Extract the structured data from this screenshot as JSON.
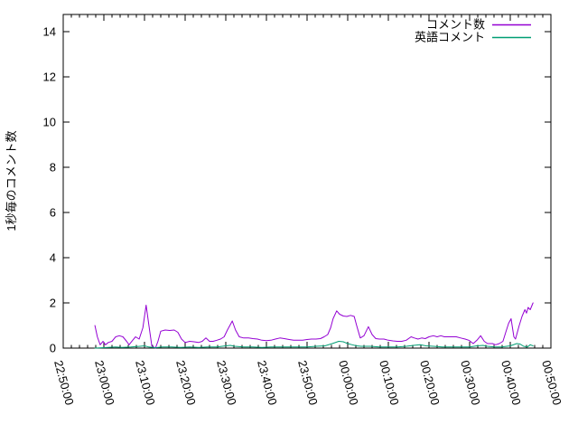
{
  "figure": {
    "background": "#ffffff",
    "axis_color": "#000000",
    "text_color": "#000000"
  },
  "chart_data": {
    "type": "line",
    "title": "",
    "xlabel": "",
    "ylabel": "1秒毎のコメント数",
    "x_axis": {
      "unit": "time HH:MM:SS",
      "tick_labels": [
        "22:50:00",
        "23:00:00",
        "23:10:00",
        "23:20:00",
        "23:30:00",
        "23:40:00",
        "23:50:00",
        "00:00:00",
        "00:10:00",
        "00:20:00",
        "00:30:00",
        "00:40:00",
        "00:50:00"
      ],
      "tick_minutes": [
        0,
        10,
        20,
        30,
        40,
        50,
        60,
        70,
        80,
        90,
        100,
        110,
        120
      ],
      "minor_tick_every_minutes": 2,
      "range_minutes": [
        0,
        120
      ],
      "label_rotation_deg": 75
    },
    "y_axis": {
      "tick_labels": [
        "0",
        "2",
        "4",
        "6",
        "8",
        "10",
        "12",
        "14"
      ],
      "tick_values": [
        0,
        2,
        4,
        6,
        8,
        10,
        12,
        14
      ],
      "range": [
        0,
        14.8
      ],
      "grid": false
    },
    "legend": {
      "position": "top-right-inside",
      "entries": [
        {
          "label": "コメント数",
          "color": "#9400D3"
        },
        {
          "label": "英語コメント",
          "color": "#009E73"
        }
      ]
    },
    "series": [
      {
        "name": "コメント数",
        "color": "#9400D3",
        "x_unit": "minutes_after_22:50:00",
        "points": [
          [
            7.8,
            1.0
          ],
          [
            8.4,
            0.5
          ],
          [
            9.1,
            0.15
          ],
          [
            9.8,
            0.3
          ],
          [
            10.4,
            0.15
          ],
          [
            11.1,
            0.25
          ],
          [
            12.0,
            0.3
          ],
          [
            12.9,
            0.5
          ],
          [
            13.8,
            0.55
          ],
          [
            14.7,
            0.5
          ],
          [
            15.6,
            0.3
          ],
          [
            16.2,
            0.15
          ],
          [
            17.1,
            0.35
          ],
          [
            17.8,
            0.5
          ],
          [
            18.7,
            0.4
          ],
          [
            19.6,
            0.9
          ],
          [
            20.4,
            1.9
          ],
          [
            21.1,
            1.0
          ],
          [
            21.8,
            0.1
          ],
          [
            22.7,
            0.0
          ],
          [
            23.3,
            0.3
          ],
          [
            24.0,
            0.75
          ],
          [
            25.1,
            0.8
          ],
          [
            26.2,
            0.78
          ],
          [
            27.3,
            0.8
          ],
          [
            28.2,
            0.7
          ],
          [
            29.1,
            0.4
          ],
          [
            30.0,
            0.25
          ],
          [
            31.1,
            0.3
          ],
          [
            32.2,
            0.28
          ],
          [
            33.3,
            0.25
          ],
          [
            34.2,
            0.3
          ],
          [
            35.1,
            0.45
          ],
          [
            36.0,
            0.3
          ],
          [
            36.9,
            0.3
          ],
          [
            37.8,
            0.35
          ],
          [
            38.7,
            0.4
          ],
          [
            39.6,
            0.5
          ],
          [
            40.4,
            0.8
          ],
          [
            41.6,
            1.2
          ],
          [
            42.4,
            0.8
          ],
          [
            43.3,
            0.5
          ],
          [
            44.4,
            0.45
          ],
          [
            45.6,
            0.45
          ],
          [
            46.7,
            0.42
          ],
          [
            47.8,
            0.4
          ],
          [
            48.9,
            0.35
          ],
          [
            50.0,
            0.33
          ],
          [
            51.1,
            0.35
          ],
          [
            52.2,
            0.4
          ],
          [
            53.3,
            0.45
          ],
          [
            54.4,
            0.42
          ],
          [
            55.6,
            0.38
          ],
          [
            56.7,
            0.35
          ],
          [
            57.8,
            0.35
          ],
          [
            58.9,
            0.35
          ],
          [
            60.0,
            0.38
          ],
          [
            61.1,
            0.4
          ],
          [
            62.2,
            0.4
          ],
          [
            63.3,
            0.42
          ],
          [
            64.2,
            0.5
          ],
          [
            65.1,
            0.6
          ],
          [
            65.8,
            0.9
          ],
          [
            66.4,
            1.3
          ],
          [
            67.3,
            1.65
          ],
          [
            68.0,
            1.5
          ],
          [
            68.9,
            1.42
          ],
          [
            69.8,
            1.4
          ],
          [
            70.7,
            1.45
          ],
          [
            71.6,
            1.4
          ],
          [
            72.2,
            1.0
          ],
          [
            73.1,
            0.45
          ],
          [
            74.0,
            0.55
          ],
          [
            75.1,
            0.95
          ],
          [
            76.0,
            0.6
          ],
          [
            76.9,
            0.42
          ],
          [
            77.8,
            0.4
          ],
          [
            78.9,
            0.4
          ],
          [
            80.0,
            0.35
          ],
          [
            81.1,
            0.32
          ],
          [
            82.2,
            0.3
          ],
          [
            83.3,
            0.3
          ],
          [
            84.4,
            0.35
          ],
          [
            85.6,
            0.5
          ],
          [
            86.4,
            0.45
          ],
          [
            87.3,
            0.4
          ],
          [
            88.2,
            0.45
          ],
          [
            89.1,
            0.42
          ],
          [
            90.0,
            0.5
          ],
          [
            91.1,
            0.55
          ],
          [
            92.0,
            0.5
          ],
          [
            92.9,
            0.55
          ],
          [
            93.8,
            0.5
          ],
          [
            94.7,
            0.5
          ],
          [
            95.6,
            0.5
          ],
          [
            96.7,
            0.5
          ],
          [
            97.8,
            0.45
          ],
          [
            98.9,
            0.4
          ],
          [
            99.8,
            0.35
          ],
          [
            100.9,
            0.2
          ],
          [
            101.8,
            0.35
          ],
          [
            102.7,
            0.55
          ],
          [
            103.6,
            0.3
          ],
          [
            104.4,
            0.2
          ],
          [
            105.6,
            0.2
          ],
          [
            106.4,
            0.15
          ],
          [
            107.3,
            0.2
          ],
          [
            108.2,
            0.3
          ],
          [
            108.9,
            0.7
          ],
          [
            109.6,
            1.1
          ],
          [
            110.2,
            1.3
          ],
          [
            110.9,
            0.5
          ],
          [
            111.3,
            0.4
          ],
          [
            112.2,
            1.0
          ],
          [
            112.9,
            1.4
          ],
          [
            113.6,
            1.7
          ],
          [
            114.0,
            1.55
          ],
          [
            114.4,
            1.8
          ],
          [
            114.9,
            1.7
          ],
          [
            115.6,
            2.0
          ]
        ]
      },
      {
        "name": "英語コメント",
        "color": "#009E73",
        "x_unit": "minutes_after_22:50:00",
        "points": [
          [
            7.8,
            0.0
          ],
          [
            10.0,
            0.02
          ],
          [
            12.9,
            0.05
          ],
          [
            14.4,
            0.03
          ],
          [
            16.7,
            0.05
          ],
          [
            18.9,
            0.08
          ],
          [
            20.0,
            0.1
          ],
          [
            21.1,
            0.05
          ],
          [
            22.7,
            0.02
          ],
          [
            24.4,
            0.05
          ],
          [
            26.7,
            0.05
          ],
          [
            28.9,
            0.03
          ],
          [
            31.1,
            0.05
          ],
          [
            33.3,
            0.03
          ],
          [
            35.6,
            0.05
          ],
          [
            37.8,
            0.05
          ],
          [
            40.0,
            0.1
          ],
          [
            41.1,
            0.12
          ],
          [
            42.2,
            0.08
          ],
          [
            44.4,
            0.05
          ],
          [
            46.7,
            0.05
          ],
          [
            48.9,
            0.03
          ],
          [
            51.1,
            0.05
          ],
          [
            53.3,
            0.05
          ],
          [
            55.6,
            0.05
          ],
          [
            57.8,
            0.05
          ],
          [
            60.0,
            0.05
          ],
          [
            62.2,
            0.08
          ],
          [
            64.4,
            0.1
          ],
          [
            66.2,
            0.2
          ],
          [
            67.8,
            0.3
          ],
          [
            68.9,
            0.28
          ],
          [
            70.0,
            0.2
          ],
          [
            71.1,
            0.15
          ],
          [
            72.2,
            0.1
          ],
          [
            73.3,
            0.08
          ],
          [
            75.6,
            0.08
          ],
          [
            77.8,
            0.05
          ],
          [
            80.0,
            0.05
          ],
          [
            82.2,
            0.05
          ],
          [
            84.4,
            0.08
          ],
          [
            86.2,
            0.12
          ],
          [
            87.8,
            0.15
          ],
          [
            89.3,
            0.1
          ],
          [
            91.1,
            0.08
          ],
          [
            93.3,
            0.05
          ],
          [
            95.6,
            0.05
          ],
          [
            97.8,
            0.05
          ],
          [
            100.0,
            0.05
          ],
          [
            101.8,
            0.1
          ],
          [
            103.3,
            0.12
          ],
          [
            104.4,
            0.08
          ],
          [
            106.2,
            0.05
          ],
          [
            107.8,
            0.05
          ],
          [
            110.0,
            0.1
          ],
          [
            111.6,
            0.2
          ],
          [
            112.4,
            0.18
          ],
          [
            113.3,
            0.08
          ],
          [
            114.2,
            0.05
          ],
          [
            114.9,
            0.15
          ],
          [
            115.6,
            0.1
          ]
        ]
      }
    ]
  }
}
